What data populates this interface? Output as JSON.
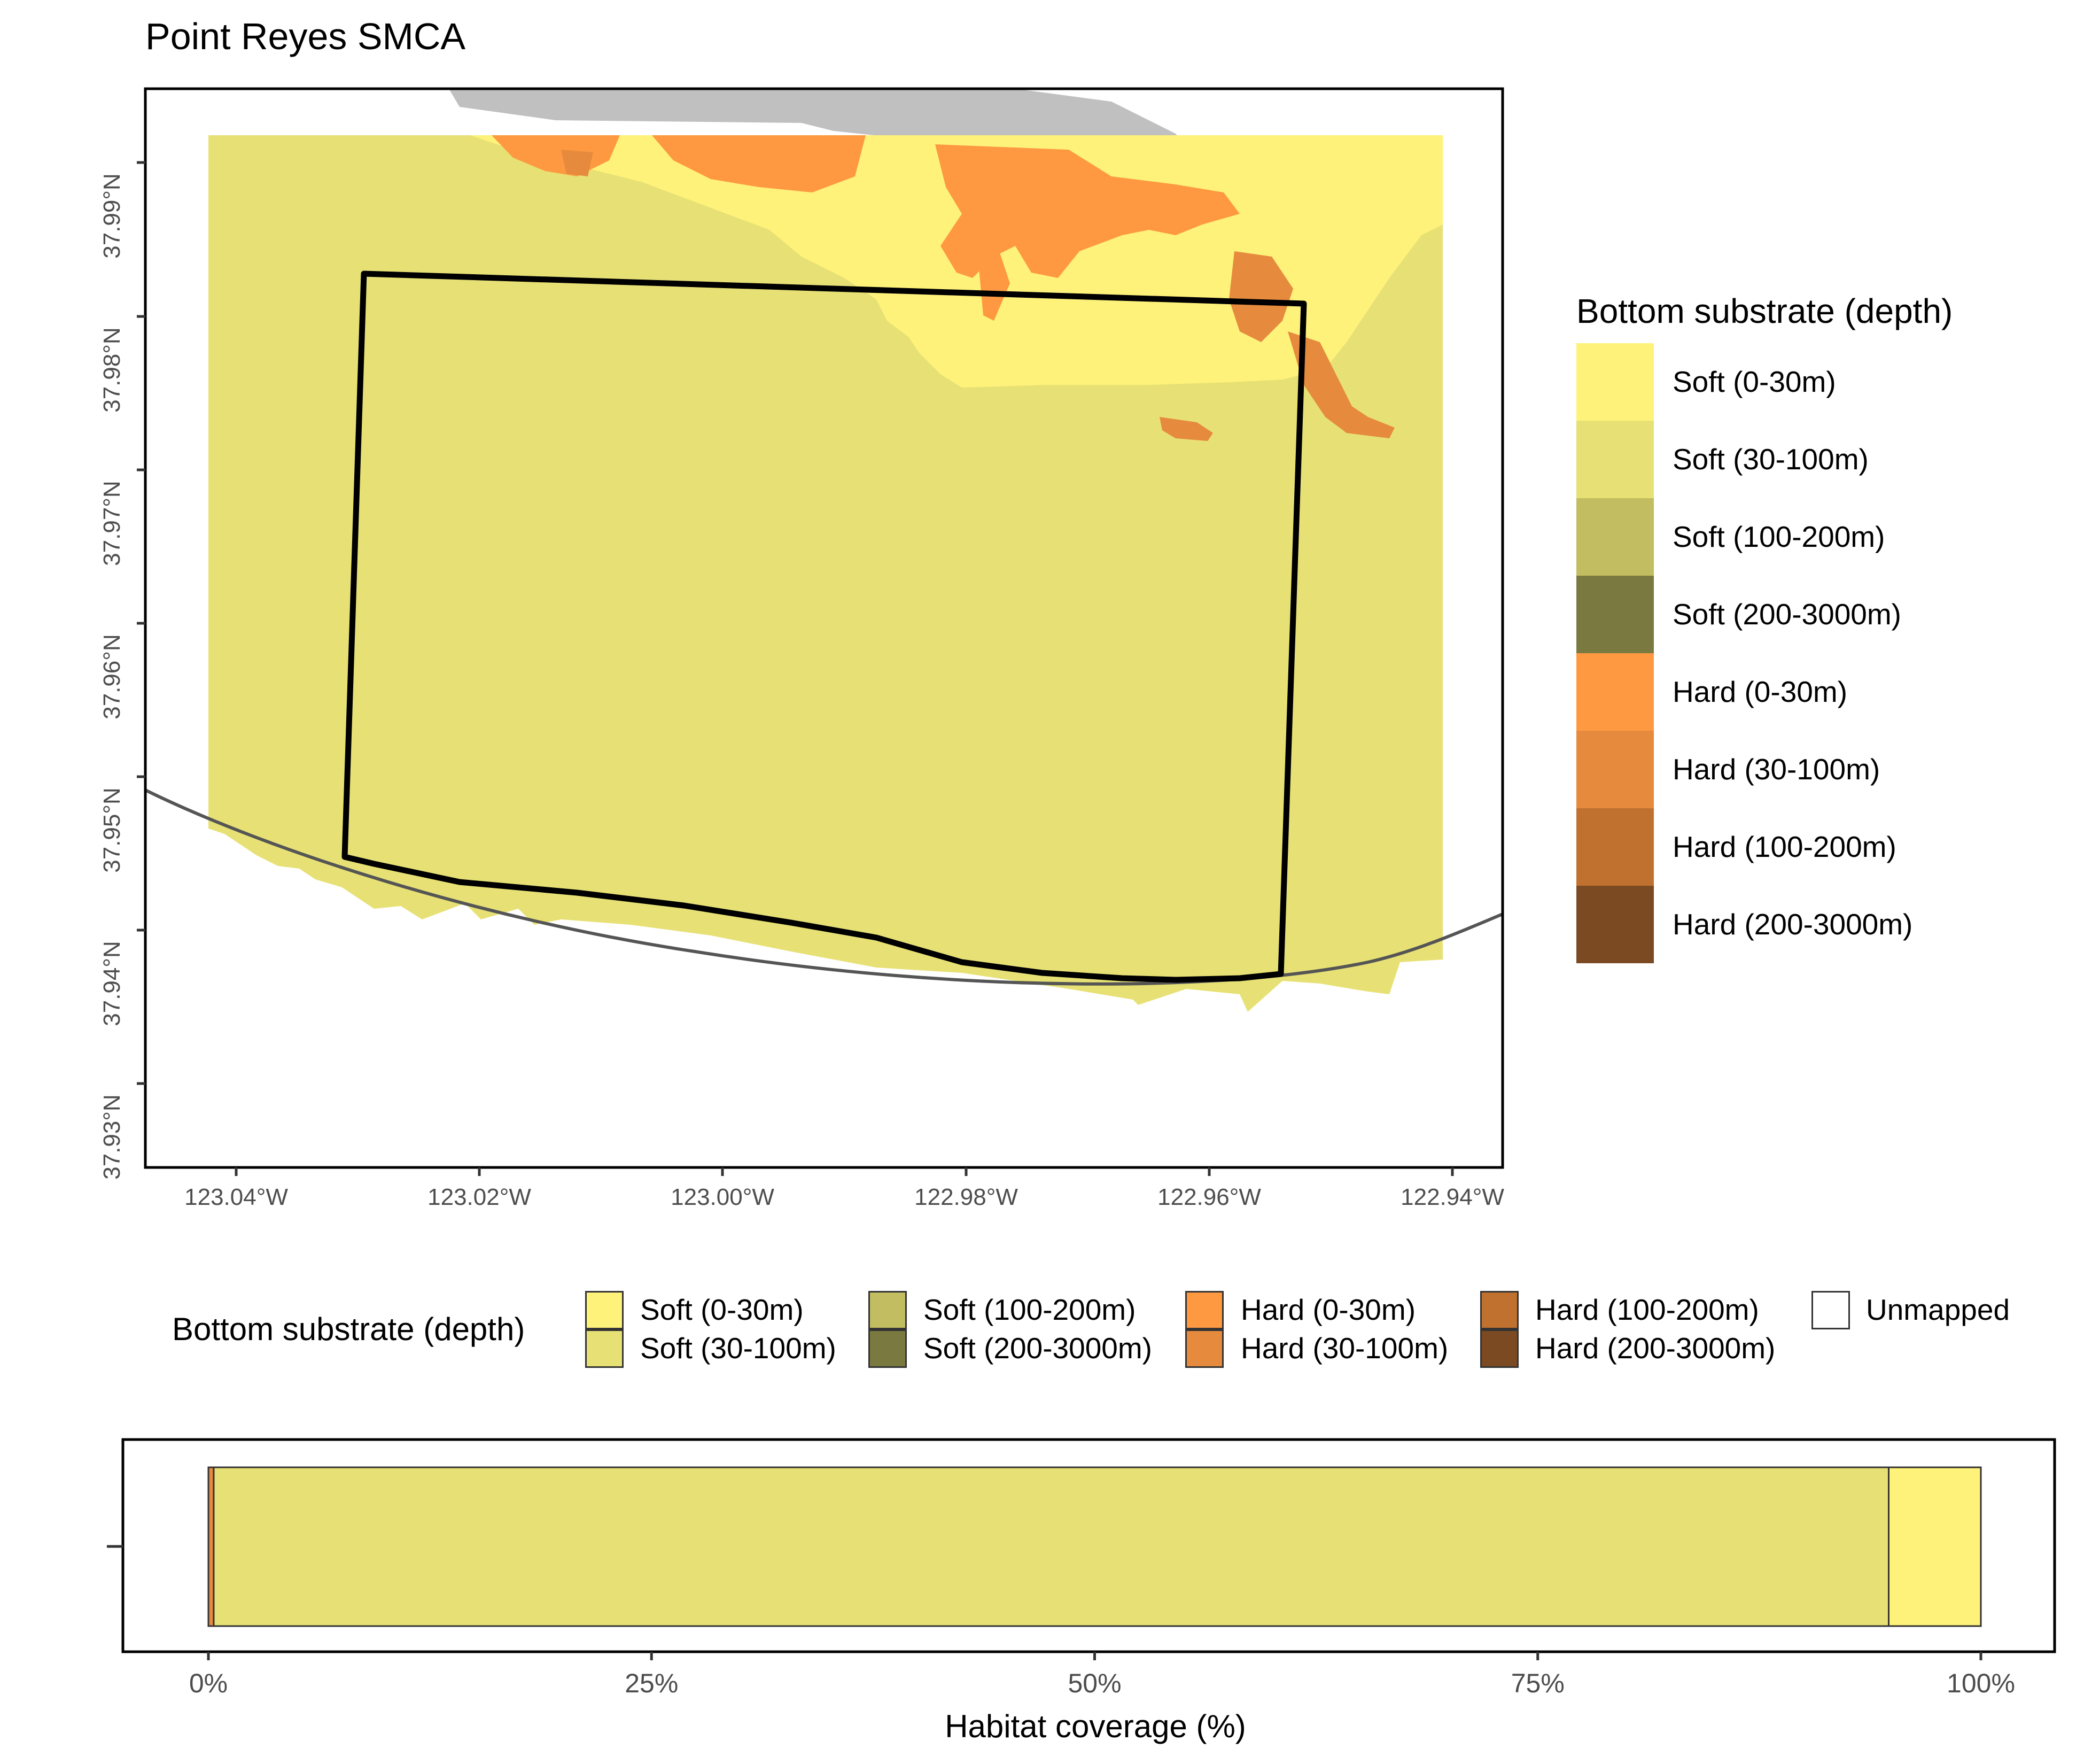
{
  "title": "Point Reyes SMCA",
  "colors": {
    "soft_0_30": "#FEF27A",
    "soft_30_100": "#E7E175",
    "soft_100_200": "#C1BD60",
    "soft_200_3000": "#7A7A40",
    "hard_0_30": "#FE9941",
    "hard_30_100": "#E68A3E",
    "hard_100_200": "#C0712F",
    "hard_200_3000": "#7B4A22",
    "land": "#C0C0C0"
  },
  "map": {
    "x_ticks": [
      "123.04°W",
      "123.02°W",
      "123.00°W",
      "122.98°W",
      "122.96°W",
      "122.94°W"
    ],
    "y_ticks": [
      "37.99°N",
      "37.98°N",
      "37.97°N",
      "37.96°N",
      "37.95°N",
      "37.94°N",
      "37.93°N"
    ]
  },
  "legend": {
    "title": "Bottom substrate (depth)",
    "items": [
      {
        "label": "Soft (0-30m)",
        "color": "#FEF27A"
      },
      {
        "label": "Soft (30-100m)",
        "color": "#E7E175"
      },
      {
        "label": "Soft (100-200m)",
        "color": "#C1BD60"
      },
      {
        "label": "Soft (200-3000m)",
        "color": "#7A7A40"
      },
      {
        "label": "Hard (0-30m)",
        "color": "#FE9941"
      },
      {
        "label": "Hard (30-100m)",
        "color": "#E68A3E"
      },
      {
        "label": "Hard (100-200m)",
        "color": "#C0712F"
      },
      {
        "label": "Hard (200-3000m)",
        "color": "#7B4A22"
      }
    ]
  },
  "bottom_legend": {
    "title": "Bottom substrate (depth)",
    "items": [
      {
        "label": "Soft (0-30m)",
        "color": "#FEF27A"
      },
      {
        "label": "Soft (30-100m)",
        "color": "#E7E175"
      },
      {
        "label": "Soft (100-200m)",
        "color": "#C1BD60"
      },
      {
        "label": "Soft (200-3000m)",
        "color": "#7A7A40"
      },
      {
        "label": "Hard (0-30m)",
        "color": "#FE9941"
      },
      {
        "label": "Hard (30-100m)",
        "color": "#E68A3E"
      },
      {
        "label": "Hard (100-200m)",
        "color": "#C0712F"
      },
      {
        "label": "Hard (200-3000m)",
        "color": "#7B4A22"
      },
      {
        "label": "Unmapped",
        "color": "#FFFFFF"
      }
    ]
  },
  "chart_data": {
    "type": "bar",
    "orientation": "horizontal",
    "stacked": true,
    "xlabel": "Habitat coverage (%)",
    "x_ticks": [
      "0%",
      "25%",
      "50%",
      "75%",
      "100%"
    ],
    "xlim": [
      0,
      100
    ],
    "series": [
      {
        "name": "Hard (30-100m)",
        "values": [
          0.3
        ]
      },
      {
        "name": "Soft (30-100m)",
        "values": [
          94.5
        ]
      },
      {
        "name": "Soft (0-30m)",
        "values": [
          5.2
        ]
      }
    ]
  }
}
